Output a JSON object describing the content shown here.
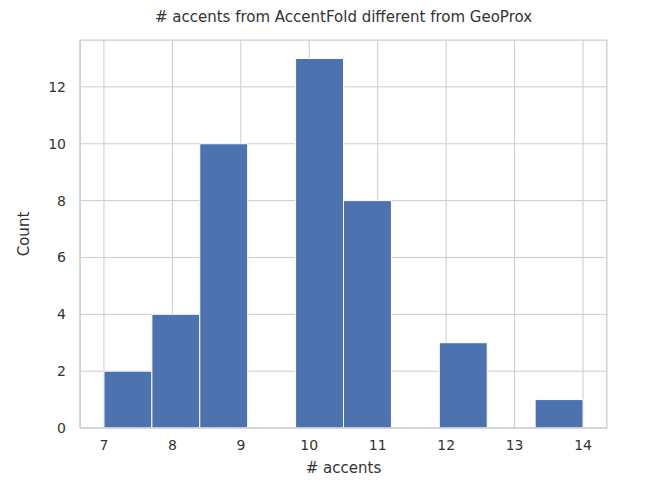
{
  "chart_data": {
    "type": "histogram",
    "title": "# accents from AccentFold different from GeoProx",
    "x_label": "# accents",
    "y_label": "Count",
    "bins": [
      7,
      7.7,
      8.4,
      9.1,
      9.8,
      10.5,
      11.2,
      11.9,
      12.6,
      13.3,
      14
    ],
    "values": [
      2,
      4,
      10,
      0,
      13,
      8,
      0,
      3,
      0,
      1
    ],
    "color": "#4c72b0",
    "xlim": [
      6.65,
      14.35
    ],
    "ylim": [
      0,
      13.65
    ],
    "xticks": [
      7,
      8,
      9,
      10,
      11,
      12,
      13,
      14
    ],
    "yticks": [
      0,
      2,
      4,
      6,
      8,
      10,
      12
    ],
    "grid": true
  }
}
